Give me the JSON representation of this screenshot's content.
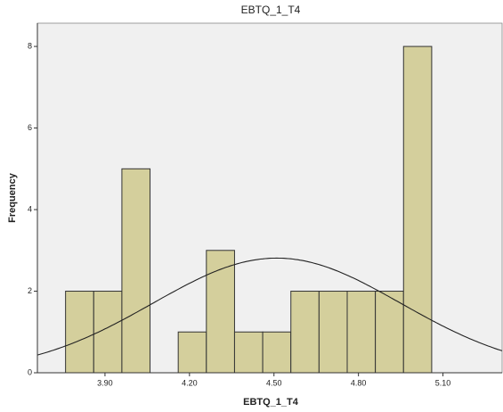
{
  "chart_data": {
    "type": "histogram",
    "title": "EBTQ_1_T4",
    "x_label": "EBTQ_1_T4",
    "y_label": "Frequency",
    "bins": [
      3.76,
      3.86,
      3.96,
      4.06,
      4.16,
      4.26,
      4.36,
      4.46,
      4.56,
      4.66,
      4.76,
      4.86,
      4.96,
      5.06
    ],
    "counts": [
      2,
      2,
      5,
      0,
      1,
      3,
      1,
      1,
      2,
      2,
      2,
      2,
      8
    ],
    "color": "#d4cf9c",
    "edge_color": "#333333",
    "background": "#f0f0f0",
    "normal_curve": {
      "mean": 4.51,
      "sd": 0.44,
      "color": "#222222"
    },
    "xlim": [
      3.66,
      5.31
    ],
    "ylim": [
      0,
      8.57
    ],
    "xticks": [
      {
        "value": 3.9,
        "label": "3.90"
      },
      {
        "value": 4.2,
        "label": "4.20"
      },
      {
        "value": 4.5,
        "label": "4.50"
      },
      {
        "value": 4.8,
        "label": "4.80"
      },
      {
        "value": 5.1,
        "label": "5.10"
      }
    ],
    "yticks": [
      0,
      2,
      4,
      6,
      8
    ]
  }
}
